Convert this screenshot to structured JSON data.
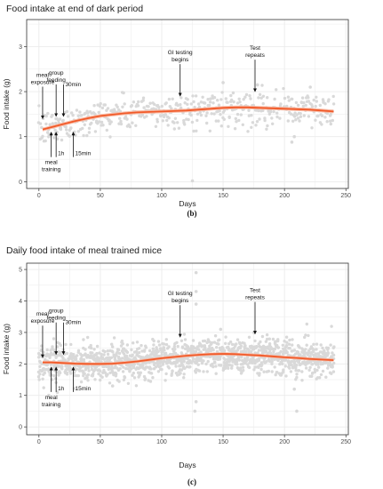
{
  "chart_data": [
    {
      "type": "scatter",
      "title": "Food intake at end of dark period",
      "panel_label": "(b)",
      "xlabel": "Days",
      "ylabel": "Food intake (g)",
      "xlim": [
        -10,
        252
      ],
      "ylim": [
        -0.15,
        3.6
      ],
      "x_ticks": [
        0,
        50,
        100,
        150,
        200,
        250
      ],
      "y_ticks": [
        0,
        1,
        2,
        3
      ],
      "grid": true,
      "colors": {
        "points": "#d9d9d9",
        "trend": "#f15a29",
        "band": "#f8b49c",
        "panel_border": "#333333",
        "grid": "#ebebeb"
      },
      "trend": {
        "x": [
          3,
          10,
          20,
          30,
          40,
          50,
          60,
          70,
          80,
          90,
          100,
          110,
          120,
          130,
          140,
          150,
          160,
          170,
          180,
          190,
          200,
          210,
          220,
          230,
          240
        ],
        "y": [
          1.16,
          1.21,
          1.28,
          1.35,
          1.41,
          1.46,
          1.49,
          1.52,
          1.54,
          1.55,
          1.56,
          1.57,
          1.58,
          1.6,
          1.62,
          1.64,
          1.65,
          1.65,
          1.64,
          1.63,
          1.62,
          1.61,
          1.6,
          1.58,
          1.56
        ],
        "band": 0.04
      },
      "scatter_spread": 0.19,
      "outliers": [
        [
          125,
          0.02
        ],
        [
          150,
          2.2
        ],
        [
          206,
          0.88
        ],
        [
          208,
          1.0
        ],
        [
          15,
          0.95
        ],
        [
          8,
          1.0
        ],
        [
          178,
          2.15
        ],
        [
          221,
          2.1
        ]
      ],
      "annotations": [
        {
          "lines": [
            "meal",
            "exposure"
          ],
          "day": 3,
          "tip": 1.4,
          "dir": "down"
        },
        {
          "lines": [
            "group",
            "feeding"
          ],
          "day": 14,
          "tip": 1.45,
          "dir": "down"
        },
        {
          "lines": [
            "30min"
          ],
          "day": 20,
          "tip": 1.45,
          "dir": "down"
        },
        {
          "lines": [
            "1h"
          ],
          "day": 14,
          "tip": 1.1,
          "dir": "up"
        },
        {
          "lines": [
            "15min"
          ],
          "day": 28,
          "tip": 1.1,
          "dir": "up"
        },
        {
          "lines": [
            "meal",
            "training"
          ],
          "day": 10,
          "tip": 1.1,
          "dir": "up"
        },
        {
          "lines": [
            "GI testing",
            "begins"
          ],
          "day": 115,
          "tip": 1.9,
          "dir": "down"
        },
        {
          "lines": [
            "Test",
            "repeats"
          ],
          "day": 176,
          "tip": 2.0,
          "dir": "down"
        }
      ]
    },
    {
      "type": "scatter",
      "title": "Daily food intake of meal trained mice",
      "panel_label": "(c)",
      "xlabel": "Days",
      "ylabel": "Food intake (g)",
      "xlim": [
        -10,
        252
      ],
      "ylim": [
        -0.25,
        5.2
      ],
      "x_ticks": [
        0,
        50,
        100,
        150,
        200,
        250
      ],
      "y_ticks": [
        0,
        1,
        2,
        3,
        4,
        5
      ],
      "grid": true,
      "colors": {
        "points": "#d9d9d9",
        "trend": "#f15a29",
        "band": "#f8b49c",
        "panel_border": "#333333",
        "grid": "#ebebeb"
      },
      "trend": {
        "x": [
          3,
          10,
          20,
          30,
          40,
          50,
          60,
          70,
          80,
          90,
          100,
          110,
          120,
          130,
          140,
          150,
          160,
          170,
          180,
          190,
          200,
          210,
          220,
          230,
          240
        ],
        "y": [
          2.05,
          2.05,
          2.03,
          2.01,
          2.0,
          2.0,
          2.01,
          2.04,
          2.08,
          2.13,
          2.18,
          2.22,
          2.26,
          2.29,
          2.31,
          2.32,
          2.31,
          2.29,
          2.27,
          2.24,
          2.21,
          2.19,
          2.16,
          2.14,
          2.12
        ],
        "band": 0.05
      },
      "scatter_spread": 0.28,
      "outliers": [
        [
          128,
          4.9
        ],
        [
          128,
          4.3
        ],
        [
          128,
          3.9
        ],
        [
          127,
          0.5
        ],
        [
          128,
          0.8
        ],
        [
          208,
          1.2
        ],
        [
          210,
          0.5
        ],
        [
          15,
          1.1
        ],
        [
          8,
          1.0
        ],
        [
          148,
          3.1
        ],
        [
          175,
          3.0
        ],
        [
          60,
          1.3
        ]
      ],
      "annotations": [
        {
          "lines": [
            "meal",
            "exposure"
          ],
          "day": 3,
          "tip": 2.2,
          "dir": "down"
        },
        {
          "lines": [
            "group",
            "feeding"
          ],
          "day": 14,
          "tip": 2.3,
          "dir": "down"
        },
        {
          "lines": [
            "30min"
          ],
          "day": 20,
          "tip": 2.3,
          "dir": "down"
        },
        {
          "lines": [
            "1h"
          ],
          "day": 14,
          "tip": 1.9,
          "dir": "up"
        },
        {
          "lines": [
            "15min"
          ],
          "day": 28,
          "tip": 1.9,
          "dir": "up"
        },
        {
          "lines": [
            "meal",
            "training"
          ],
          "day": 10,
          "tip": 1.9,
          "dir": "up"
        },
        {
          "lines": [
            "GI testing",
            "begins"
          ],
          "day": 115,
          "tip": 2.85,
          "dir": "down"
        },
        {
          "lines": [
            "Test",
            "repeats"
          ],
          "day": 176,
          "tip": 2.95,
          "dir": "down"
        }
      ]
    }
  ]
}
